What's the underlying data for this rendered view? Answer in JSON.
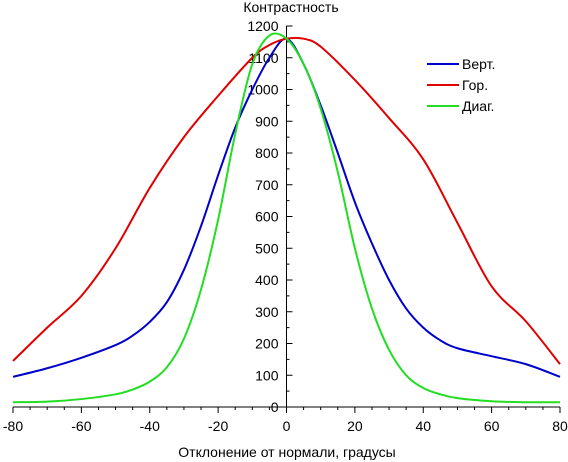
{
  "chart_data": {
    "type": "line",
    "ylabel": "Контрастность",
    "xlabel": "Отклонение от нормали, градусы",
    "xlim": [
      -80,
      80
    ],
    "ylim": [
      0,
      1200
    ],
    "xticks": [
      -80,
      -60,
      -40,
      -20,
      0,
      20,
      40,
      60,
      80
    ],
    "yticks": [
      0,
      100,
      200,
      300,
      400,
      500,
      600,
      700,
      800,
      900,
      1000,
      1100,
      1200
    ],
    "grid": false,
    "legend_position": "top-right",
    "series": [
      {
        "name": "Верт.",
        "color": "#0000cc",
        "x": [
          -80,
          -70,
          -60,
          -50,
          -45,
          -40,
          -35,
          -30,
          -25,
          -20,
          -15,
          -10,
          -5,
          0,
          5,
          10,
          15,
          20,
          25,
          30,
          35,
          40,
          45,
          50,
          60,
          70,
          80
        ],
        "y": [
          95,
          122,
          155,
          195,
          225,
          268,
          330,
          432,
          570,
          730,
          880,
          1000,
          1100,
          1160,
          1080,
          950,
          800,
          645,
          515,
          400,
          310,
          250,
          210,
          185,
          160,
          135,
          95
        ]
      },
      {
        "name": "Гор.",
        "color": "#e00000",
        "x": [
          -80,
          -70,
          -60,
          -50,
          -40,
          -30,
          -20,
          -10,
          -5,
          0,
          5,
          10,
          20,
          30,
          40,
          50,
          60,
          70,
          80
        ],
        "y": [
          145,
          250,
          350,
          500,
          690,
          850,
          980,
          1100,
          1140,
          1160,
          1160,
          1135,
          1030,
          910,
          780,
          580,
          380,
          270,
          135
        ]
      },
      {
        "name": "Диаг.",
        "color": "#22dd22",
        "x": [
          -80,
          -70,
          -60,
          -50,
          -45,
          -40,
          -35,
          -30,
          -25,
          -20,
          -15,
          -10,
          -5,
          0,
          5,
          10,
          15,
          20,
          25,
          30,
          35,
          40,
          45,
          50,
          60,
          70,
          80
        ],
        "y": [
          15,
          17,
          25,
          40,
          55,
          80,
          125,
          215,
          370,
          590,
          860,
          1080,
          1170,
          1160,
          1080,
          940,
          740,
          500,
          310,
          180,
          100,
          60,
          40,
          28,
          18,
          15,
          15
        ]
      }
    ]
  }
}
